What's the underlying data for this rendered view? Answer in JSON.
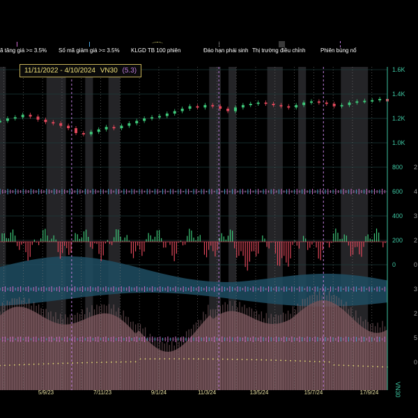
{
  "info_box": {
    "date_range": "11/11/2022 - 4/10/2024",
    "symbol": "VN30",
    "change": "(5.3)"
  },
  "legend": [
    {
      "name": "legend-up-count",
      "label": "ã tăng giá >= 3.5%",
      "marker": "bar",
      "color": "#d46fd6"
    },
    {
      "name": "legend-down-count",
      "label": "Số mã giảm giá >= 3.5%",
      "marker": "bar",
      "color": "#4aa6e0"
    },
    {
      "name": "legend-volume-ma",
      "label": "KLGD TB 100 phiên",
      "marker": "dots",
      "color": "#e8e07a"
    },
    {
      "name": "legend-expiry",
      "label": "Đáo hạn phái sinh",
      "marker": "dotline",
      "color": "#cfcfcf"
    },
    {
      "name": "legend-correction",
      "label": "Thị trường điều chỉnh",
      "marker": "box",
      "color": "#3a3a3a"
    },
    {
      "name": "legend-breakout",
      "label": "Phiên bùng nổ",
      "marker": "dashline",
      "color": "#c07ee0"
    }
  ],
  "axis_labels": {
    "price_ticks": [
      "1.6K",
      "1.4K",
      "1.2K",
      "1.0K",
      "800",
      "600",
      "400",
      "200",
      "0"
    ],
    "volume_axis_label": "VN30",
    "x_ticks": [
      "5/9/23",
      "7/11/23",
      "9/1/24",
      "11/3/24",
      "13/5/24",
      "15/7/24",
      "17/9/24"
    ]
  },
  "chart_data": {
    "type": "line",
    "x_ticks": [
      "5/9/23",
      "7/11/23",
      "9/1/24",
      "11/3/24",
      "13/5/24",
      "15/7/24",
      "17/9/24"
    ],
    "price_axis": {
      "ticks": [
        1600,
        1400,
        1200,
        1000,
        800,
        600,
        400,
        200,
        0
      ],
      "range": [
        0,
        1600
      ]
    },
    "series": [
      {
        "name": "VN30",
        "kind": "candlestick-close",
        "values": [
          1180,
          1200,
          1210,
          1230,
          1215,
          1190,
          1170,
          1160,
          1140,
          1120,
          1080,
          1070,
          1090,
          1110,
          1130,
          1120,
          1140,
          1160,
          1180,
          1200,
          1210,
          1220,
          1240,
          1260,
          1280,
          1300,
          1290,
          1310,
          1300,
          1280,
          1260,
          1290,
          1310,
          1320,
          1330,
          1320,
          1310,
          1300,
          1290,
          1310,
          1330,
          1340,
          1330,
          1320,
          1300,
          1310,
          1330,
          1340,
          1345,
          1350,
          1360,
          1340
        ]
      }
    ],
    "correction_zones": [
      [
        0.0,
        0.015
      ],
      [
        0.12,
        0.17
      ],
      [
        0.22,
        0.24
      ],
      [
        0.28,
        0.31
      ],
      [
        0.54,
        0.57
      ],
      [
        0.59,
        0.61
      ],
      [
        0.69,
        0.73
      ],
      [
        0.77,
        0.79
      ],
      [
        0.88,
        0.95
      ]
    ],
    "expiry_lines": [
      0.01,
      0.06,
      0.11,
      0.16,
      0.21,
      0.26,
      0.31,
      0.36,
      0.41,
      0.46,
      0.51,
      0.56,
      0.61,
      0.66,
      0.71,
      0.76,
      0.81,
      0.86,
      0.91,
      0.96
    ],
    "breakout_lines": [
      0.185,
      0.565,
      0.835
    ],
    "grid": true
  },
  "colors": {
    "up": "#3ec97a",
    "down": "#e0475a",
    "axis": "#3ec9a4",
    "breadth_area": "#1e4d63",
    "volume_area": "#6b4a50",
    "volume_ma": "#e8e07a"
  }
}
